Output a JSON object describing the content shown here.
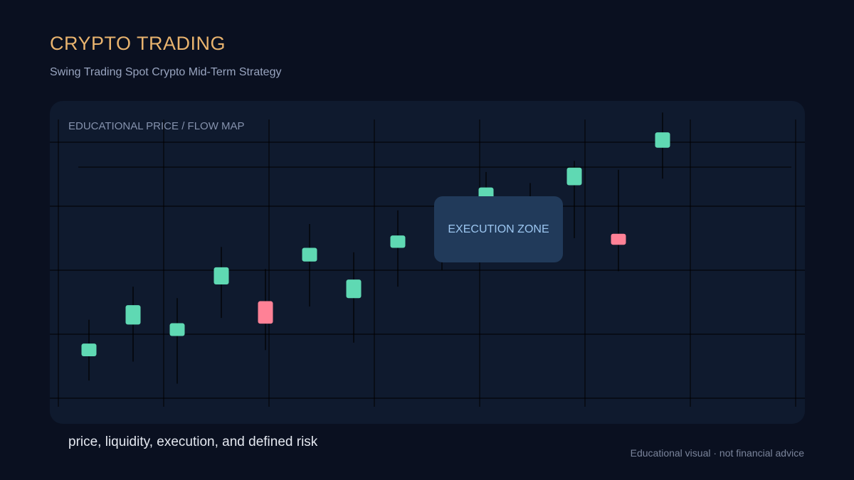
{
  "header": {
    "title": "CRYPTO TRADING",
    "subtitle": "Swing Trading Spot Crypto Mid-Term Strategy"
  },
  "panel": {
    "label": "EDUCATIONAL PRICE / FLOW MAP",
    "zone_label": "EXECUTION ZONE"
  },
  "footer": {
    "caption": "price, liquidity, execution, and defined risk",
    "disclaimer": "Educational visual · not financial advice"
  },
  "colors": {
    "up": "#5fd9b3",
    "down": "#ff8196",
    "title": "#e8b36e",
    "panel": "#0f1a2e",
    "zone": "#213a5a"
  },
  "chart_data": {
    "type": "candlestick",
    "y_axis": "unlabeled",
    "grid": true,
    "candles": [
      {
        "open": 13.7,
        "close": 16.6,
        "high": 22.0,
        "low": 8.2
      },
      {
        "open": 20.9,
        "close": 25.3,
        "high": 29.5,
        "low": 12.5
      },
      {
        "open": 18.3,
        "close": 21.2,
        "high": 26.9,
        "low": 7.5
      },
      {
        "open": 30.0,
        "close": 33.9,
        "high": 38.5,
        "low": 22.4
      },
      {
        "open": 26.2,
        "close": 21.1,
        "high": 33.5,
        "low": 15.1
      },
      {
        "open": 35.2,
        "close": 38.3,
        "high": 43.7,
        "low": 25.0
      },
      {
        "open": 26.9,
        "close": 31.1,
        "high": 37.3,
        "low": 16.8
      },
      {
        "open": 38.3,
        "close": 41.1,
        "high": 46.8,
        "low": 29.5
      },
      {
        "open": 41.0,
        "close": 45.0,
        "high": 48.7,
        "low": 33.2
      },
      {
        "open": 48.5,
        "close": 52.0,
        "high": 55.5,
        "low": 41.5
      },
      {
        "open": 45.0,
        "close": 48.5,
        "high": 53.0,
        "low": 37.0
      },
      {
        "open": 52.5,
        "close": 56.5,
        "high": 58.0,
        "low": 40.5
      },
      {
        "open": 41.5,
        "close": 39.0,
        "high": 56.0,
        "low": 33.0
      },
      {
        "open": 61.0,
        "close": 64.5,
        "high": 69.0,
        "low": 54.0
      }
    ],
    "y_range": [
      0,
      70
    ]
  }
}
